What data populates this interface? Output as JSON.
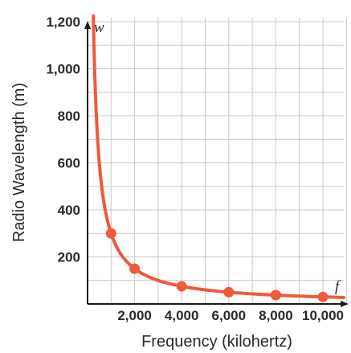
{
  "chart_data": {
    "type": "line",
    "title": "",
    "xlabel": "Frequency (kilohertz)",
    "ylabel": "Radio Wavelength (m)",
    "x_axis_variable": "f",
    "y_axis_variable": "w",
    "xlim": [
      0,
      11000
    ],
    "ylim": [
      0,
      1200
    ],
    "x_ticks": [
      2000,
      4000,
      6000,
      8000,
      10000
    ],
    "x_tick_labels": [
      "2,000",
      "4,000",
      "6,000",
      "8,000",
      "10,000"
    ],
    "y_ticks": [
      200,
      400,
      600,
      800,
      1000,
      1200
    ],
    "y_tick_labels": [
      "200",
      "400",
      "600",
      "800",
      "1,000",
      "1,200"
    ],
    "x_grid_step": 1000,
    "y_grid_step": 100,
    "grid": true,
    "series": [
      {
        "curve": "w = 300000 / f",
        "color": "#ef5a3a",
        "points": [
          {
            "x": 1000,
            "y": 300
          },
          {
            "x": 2000,
            "y": 150
          },
          {
            "x": 4000,
            "y": 75
          },
          {
            "x": 6000,
            "y": 50
          },
          {
            "x": 8000,
            "y": 37.5
          },
          {
            "x": 10000,
            "y": 30
          }
        ]
      }
    ]
  }
}
